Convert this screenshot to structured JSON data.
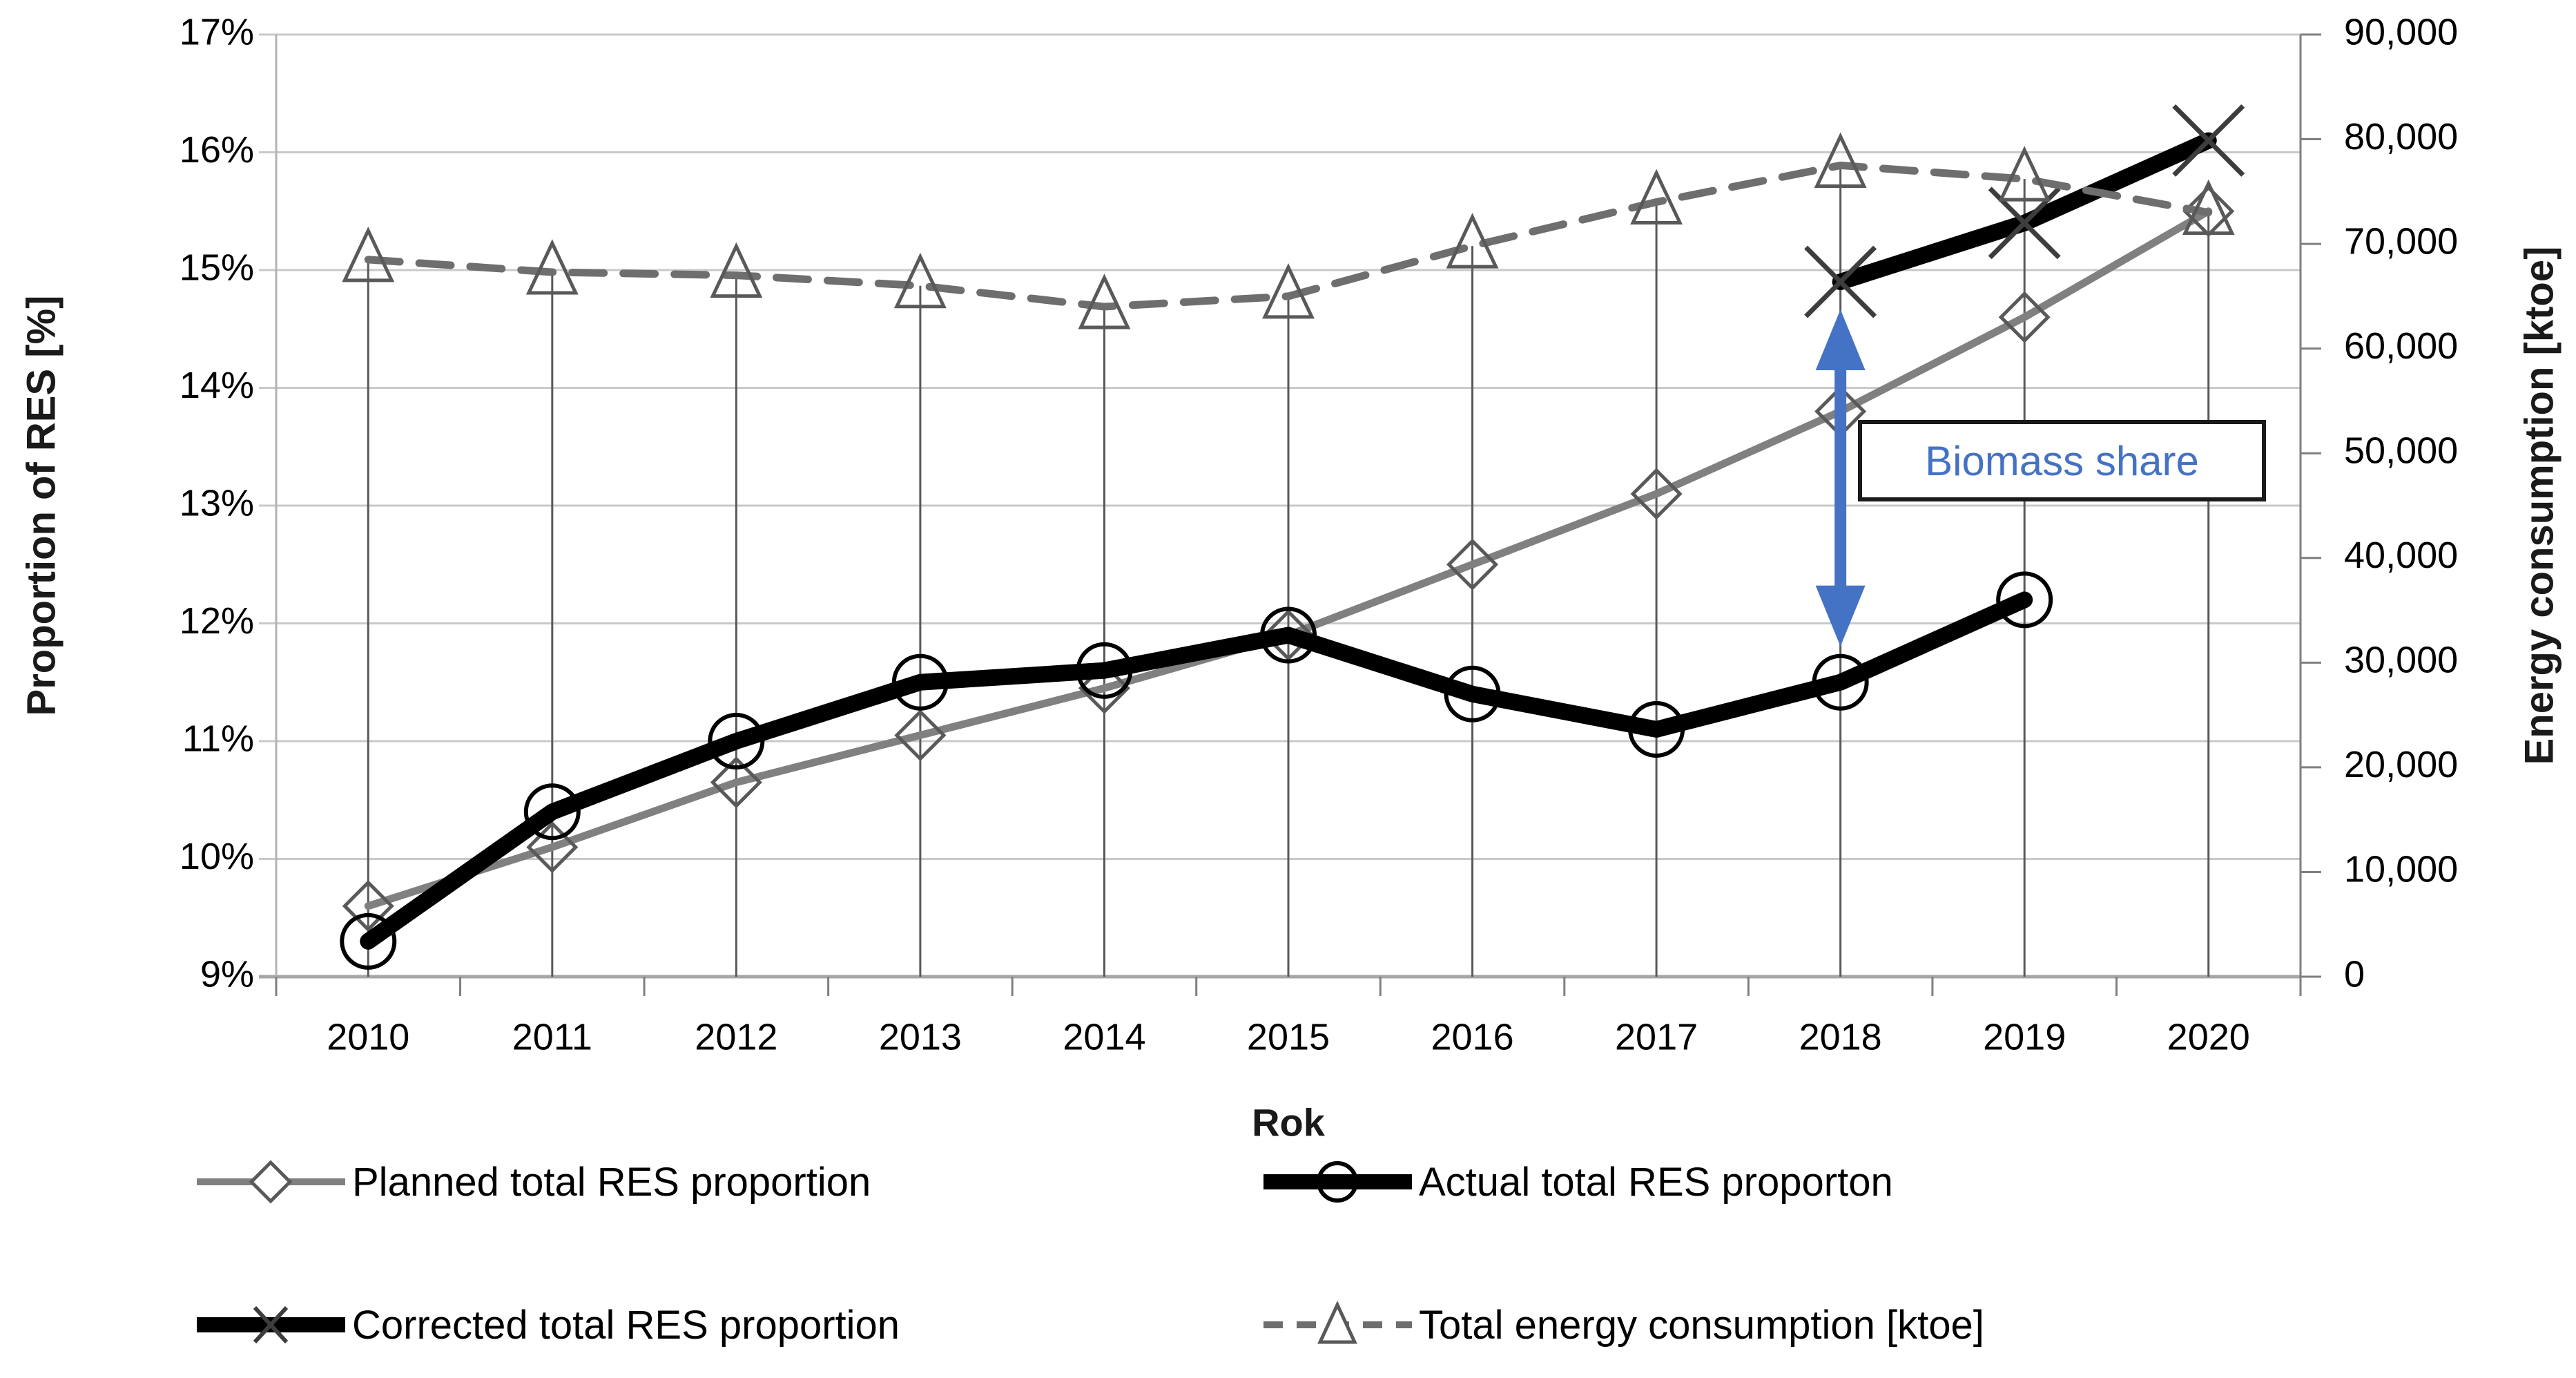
{
  "figure": {
    "y_left": {
      "title": "Proportion of RES [%]",
      "ticks": [
        "17%",
        "16%",
        "15%",
        "14%",
        "13%",
        "12%",
        "11%",
        "10%",
        "9%"
      ]
    },
    "y_right": {
      "title": "Energy consumption [ktoe]",
      "ticks": [
        "90,000",
        "80,000",
        "70,000",
        "60,000",
        "50,000",
        "40,000",
        "30,000",
        "20,000",
        "10,000",
        "0"
      ]
    },
    "x": {
      "title": "Rok",
      "labels": [
        "2010",
        "2011",
        "2012",
        "2013",
        "2014",
        "2015",
        "2016",
        "2017",
        "2018",
        "2019",
        "2020"
      ]
    },
    "annotation": {
      "label": "Biomass share",
      "color": "#4472C4",
      "year": "2018",
      "from_pct": 14.9,
      "to_pct": 11.5
    },
    "legend": {
      "items": [
        {
          "label": "Planned total RES proportion",
          "marker": "diamond",
          "line": "gray-solid"
        },
        {
          "label": "Actual total RES proporton",
          "marker": "circle",
          "line": "black-thick"
        },
        {
          "label": "Corrected total RES proportion",
          "marker": "x",
          "line": "black-thick"
        },
        {
          "label": "Total energy consumption [ktoe]",
          "marker": "triangle",
          "line": "gray-dashed"
        }
      ]
    }
  },
  "colors": {
    "blue_accent": "#4472C4",
    "gray_line": "#808080",
    "gray_dashed": "#6e6e6e",
    "marker_gray": "#595959",
    "black": "#000000",
    "gridline": "#c9c9c9",
    "axis_line": "#a6a6a6"
  },
  "chart_data": {
    "type": "line",
    "x": [
      2010,
      2011,
      2012,
      2013,
      2014,
      2015,
      2016,
      2017,
      2018,
      2019,
      2020
    ],
    "xlabel": "Rok",
    "ylabel_left": "Proportion of RES [%]",
    "ylabel_right": "Energy consumption [ktoe]",
    "ylim_left": [
      9,
      17
    ],
    "ylim_right": [
      0,
      90000
    ],
    "grid": "horizontal",
    "drop_lines_series": "Total energy consumption [ktoe]",
    "legend_position": "bottom",
    "series": [
      {
        "name": "Planned total RES proportion",
        "axis": "left",
        "unit": "%",
        "marker": "diamond",
        "line": "gray-solid",
        "values": [
          9.6,
          10.1,
          10.65,
          11.05,
          11.45,
          11.9,
          12.5,
          13.1,
          13.8,
          14.6,
          15.5
        ]
      },
      {
        "name": "Actual total RES proporton",
        "axis": "left",
        "unit": "%",
        "marker": "circle",
        "line": "black-thick",
        "values": [
          9.3,
          10.4,
          11.0,
          11.5,
          11.6,
          11.9,
          11.4,
          11.1,
          11.5,
          12.2,
          null
        ]
      },
      {
        "name": "Corrected total RES proportion",
        "axis": "left",
        "unit": "%",
        "marker": "x",
        "line": "black-thick",
        "values": [
          null,
          null,
          null,
          null,
          null,
          null,
          null,
          null,
          14.9,
          15.4,
          16.1
        ]
      },
      {
        "name": "Total energy consumption [ktoe]",
        "axis": "right",
        "unit": "ktoe",
        "marker": "triangle",
        "line": "gray-dashed",
        "values": [
          68500,
          67300,
          67000,
          66000,
          64000,
          65000,
          69800,
          74000,
          77500,
          76200,
          73000
        ]
      }
    ]
  }
}
